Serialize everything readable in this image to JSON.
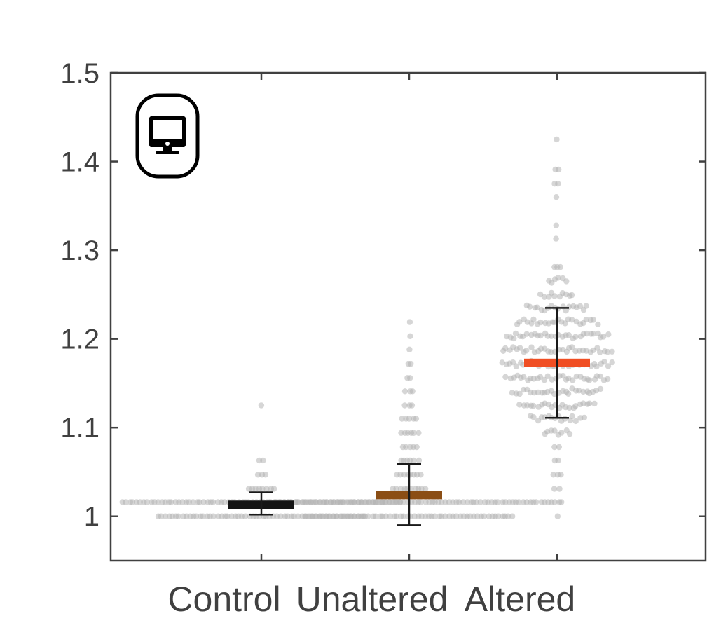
{
  "chart_data": {
    "type": "scatter",
    "subtype": "swarm plot with mean and standard deviation",
    "title": "",
    "xlabel": "",
    "ylabel": "",
    "categories": [
      "Control",
      "Unaltered",
      "Altered"
    ],
    "ylim": [
      0.95,
      1.5
    ],
    "yticks": [
      "1",
      "1.1",
      "1.2",
      "1.3",
      "1.4",
      "1.5"
    ],
    "grid": false,
    "legend": "none",
    "icon": "monitor-icon",
    "colors": {
      "points": "#b4b4b4",
      "axis": "#404040",
      "errorbar": "#1a1a1a",
      "Control": "#141414",
      "Unaltered": "#8b4e15",
      "Altered": "#f04e23"
    },
    "groups": [
      {
        "name": "Control",
        "mean": 1.013,
        "sd_low": 1.002,
        "sd_high": 1.027,
        "points": [
          {
            "y": 1.0,
            "n": 60
          },
          {
            "y": 1.016,
            "n": 80
          },
          {
            "y": 1.031,
            "n": 8
          },
          {
            "y": 1.047,
            "n": 3
          },
          {
            "y": 1.063,
            "n": 2
          },
          {
            "y": 1.125,
            "n": 1
          }
        ]
      },
      {
        "name": "Unaltered",
        "mean": 1.024,
        "sd_low": 0.99,
        "sd_high": 1.059,
        "points": [
          {
            "y": 1.0,
            "n": 60
          },
          {
            "y": 1.016,
            "n": 80
          },
          {
            "y": 1.031,
            "n": 10
          },
          {
            "y": 1.047,
            "n": 8
          },
          {
            "y": 1.063,
            "n": 6
          },
          {
            "y": 1.078,
            "n": 5
          },
          {
            "y": 1.094,
            "n": 6
          },
          {
            "y": 1.11,
            "n": 5
          },
          {
            "y": 1.125,
            "n": 3
          },
          {
            "y": 1.141,
            "n": 3
          },
          {
            "y": 1.156,
            "n": 2
          },
          {
            "y": 1.172,
            "n": 2
          },
          {
            "y": 1.188,
            "n": 1
          },
          {
            "y": 1.203,
            "n": 1
          },
          {
            "y": 1.219,
            "n": 1
          }
        ]
      },
      {
        "name": "Altered",
        "mean": 1.173,
        "sd_low": 1.111,
        "sd_high": 1.235,
        "points": [
          {
            "y": 1.0,
            "n": 1
          },
          {
            "y": 1.016,
            "n": 4
          },
          {
            "y": 1.031,
            "n": 2
          },
          {
            "y": 1.047,
            "n": 3
          },
          {
            "y": 1.063,
            "n": 2
          },
          {
            "y": 1.078,
            "n": 2
          },
          {
            "y": 1.094,
            "n": 8
          },
          {
            "y": 1.11,
            "n": 16
          },
          {
            "y": 1.125,
            "n": 22
          },
          {
            "y": 1.141,
            "n": 26
          },
          {
            "y": 1.156,
            "n": 30
          },
          {
            "y": 1.172,
            "n": 32
          },
          {
            "y": 1.188,
            "n": 32
          },
          {
            "y": 1.203,
            "n": 30
          },
          {
            "y": 1.219,
            "n": 24
          },
          {
            "y": 1.235,
            "n": 18
          },
          {
            "y": 1.25,
            "n": 10
          },
          {
            "y": 1.266,
            "n": 6
          },
          {
            "y": 1.281,
            "n": 3
          },
          {
            "y": 1.313,
            "n": 1
          },
          {
            "y": 1.328,
            "n": 1
          },
          {
            "y": 1.36,
            "n": 1
          },
          {
            "y": 1.375,
            "n": 2
          },
          {
            "y": 1.391,
            "n": 2
          },
          {
            "y": 1.425,
            "n": 1
          }
        ]
      }
    ]
  }
}
